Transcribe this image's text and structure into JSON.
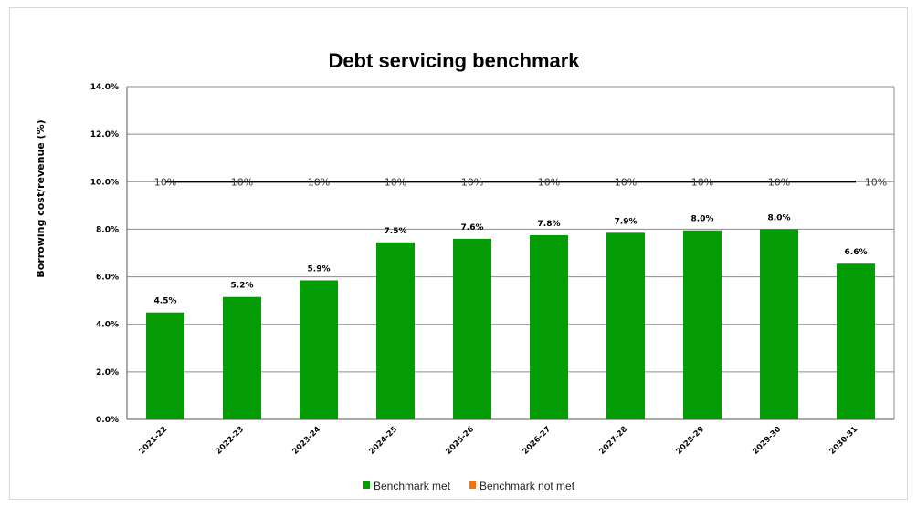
{
  "chart_data": {
    "type": "bar",
    "title": "Debt servicing benchmark",
    "ylabel": "Borrowing cost/revenue (%)",
    "xlabel": "",
    "ylim": [
      0,
      14
    ],
    "yticks": [
      "0.0%",
      "2.0%",
      "4.0%",
      "6.0%",
      "8.0%",
      "10.0%",
      "12.0%",
      "14.0%"
    ],
    "categories": [
      "2021-22",
      "2022-23",
      "2023-24",
      "2024-25",
      "2025-26",
      "2026-27",
      "2027-28",
      "2028-29",
      "2029-30",
      "2030-31"
    ],
    "series": [
      {
        "name": "Benchmark met",
        "color": "#049c04",
        "values": [
          4.5,
          5.15,
          5.85,
          7.45,
          7.6,
          7.75,
          7.85,
          7.95,
          8.0,
          6.55
        ],
        "labels": [
          "4.5%",
          "5.2%",
          "5.9%",
          "7.5%",
          "7.6%",
          "7.8%",
          "7.9%",
          "8.0%",
          "8.0%",
          "6.6%"
        ]
      },
      {
        "name": "Benchmark not met",
        "color": "#e8761b",
        "values": [
          0,
          0,
          0,
          0,
          0,
          0,
          0,
          0,
          0,
          0
        ]
      }
    ],
    "benchmark": {
      "value": 10,
      "label": "10%",
      "labels": [
        "10%",
        "10%",
        "10%",
        "10%",
        "10%",
        "10%",
        "10%",
        "10%",
        "10%",
        "10%"
      ],
      "color": "#000000"
    },
    "grid": true,
    "legend_position": "bottom"
  }
}
